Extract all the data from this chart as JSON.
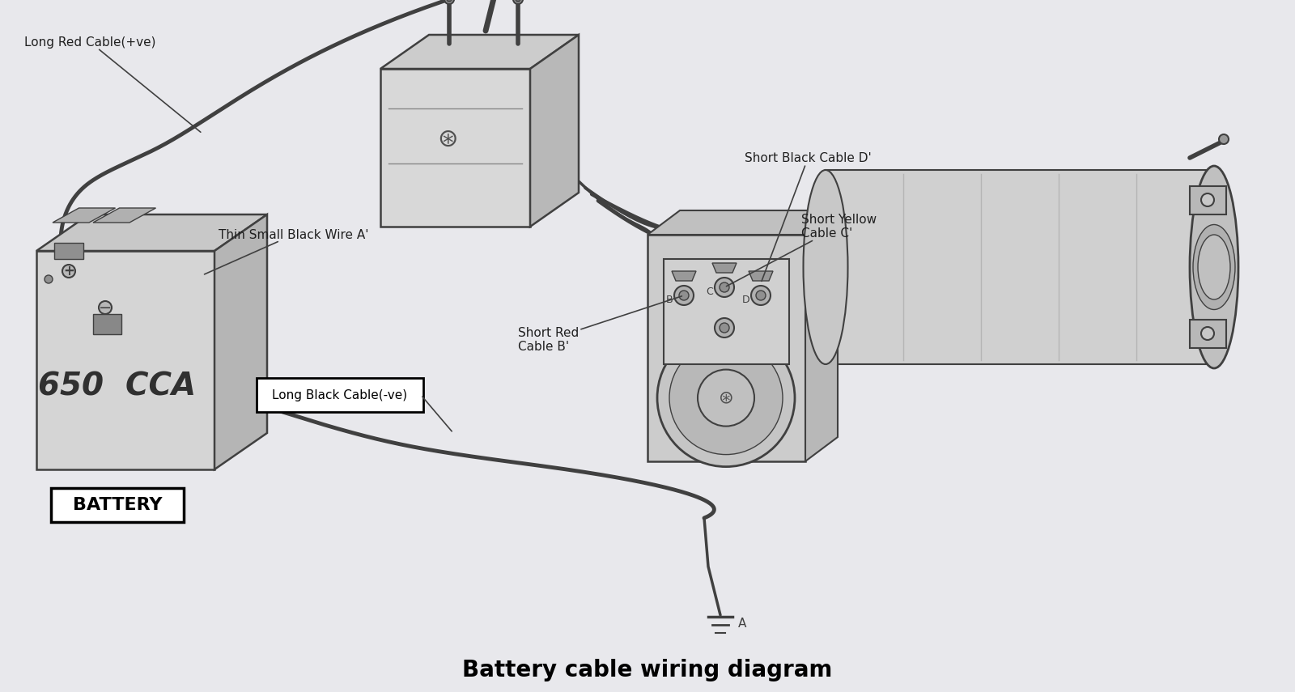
{
  "bg_color": "#e8e8ec",
  "title": "Battery cable wiring diagram",
  "title_fontsize": 20,
  "title_fontweight": "bold",
  "labels": {
    "long_red": "Long Red Cable(+ve)",
    "thin_black": "Thin Small Black Wire A'",
    "short_red": "Short Red\nCable B'",
    "short_yellow": "Short Yellow\nCable C'",
    "short_black": "Short Black Cable D'",
    "long_black": "Long Black Cable(-ve)",
    "battery_label": "BATTERY",
    "battery_cca": "650  CCA"
  },
  "line_color": "#303030",
  "component_fill": "#d8d8d8",
  "component_edge": "#404040",
  "light_fill": "#e8e8e8",
  "mid_fill": "#c0c0c0",
  "dark_fill": "#a0a0a0"
}
